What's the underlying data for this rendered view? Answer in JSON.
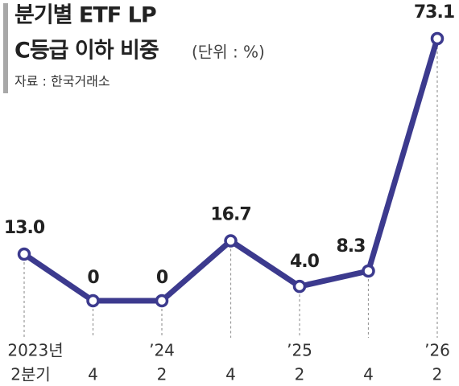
{
  "chart_data": {
    "type": "line",
    "title": "분기별 ETF LP",
    "title_line2": "C등급 이하 비중",
    "unit": "(단위 : %)",
    "source": "자료 : 한국거래소",
    "year_labels": [
      "2023년",
      null,
      "’24",
      null,
      "’25",
      null,
      "’26"
    ],
    "categories": [
      "2분기",
      "4",
      "2",
      "4",
      "2",
      "4",
      "2"
    ],
    "series": [
      {
        "color": "#3c3a8e",
        "values": [
          13.0,
          0,
          0,
          16.7,
          4.0,
          8.3,
          73.1
        ],
        "value_labels": [
          "13.0",
          "0",
          "0",
          "16.7",
          "4.0",
          "8.3",
          "73.1"
        ]
      }
    ]
  }
}
